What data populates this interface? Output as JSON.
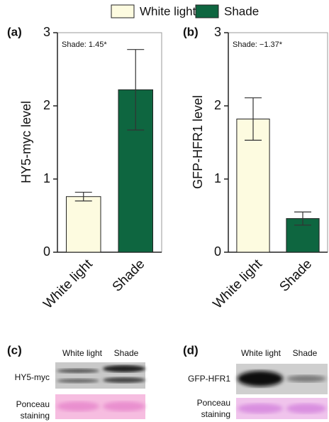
{
  "legend": {
    "items": [
      {
        "name": "White light",
        "color": "#fdfbe0"
      },
      {
        "name": "Shade",
        "color": "#0e6640"
      }
    ]
  },
  "chart_data": [
    {
      "type": "bar",
      "panel": "(a)",
      "ylabel": "HY5-myc level",
      "annotation": "Shade: 1.45*",
      "categories": [
        "White light",
        "Shade"
      ],
      "values": [
        0.76,
        2.22
      ],
      "errors": [
        0.06,
        0.55
      ],
      "colors": [
        "#fdfbe0",
        "#0e6640"
      ],
      "ylim": [
        0,
        3
      ],
      "yticks": [
        0,
        1,
        2,
        3
      ]
    },
    {
      "type": "bar",
      "panel": "(b)",
      "ylabel": "GFP-HFR1 level",
      "annotation": "Shade: −1.37*",
      "categories": [
        "White light",
        "Shade"
      ],
      "values": [
        1.82,
        0.46
      ],
      "errors": [
        0.29,
        0.09
      ],
      "colors": [
        "#fdfbe0",
        "#0e6640"
      ],
      "ylim": [
        0,
        3
      ],
      "yticks": [
        0,
        1,
        2,
        3
      ]
    }
  ],
  "blots": [
    {
      "panel": "(c)",
      "lanes": [
        "White light",
        "Shade"
      ],
      "protein": "HY5-myc",
      "loading": [
        "Ponceau",
        "staining"
      ]
    },
    {
      "panel": "(d)",
      "lanes": [
        "White light",
        "Shade"
      ],
      "protein": "GFP-HFR1",
      "loading": [
        "Ponceau",
        "staining"
      ]
    }
  ]
}
